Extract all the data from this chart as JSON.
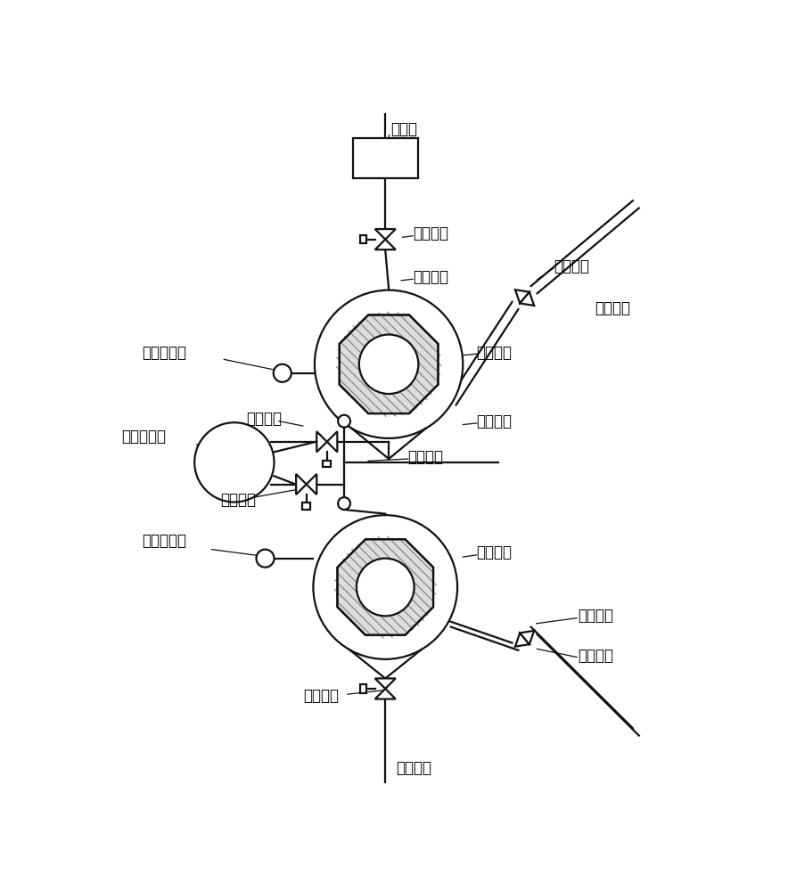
{
  "bg_color": "#ffffff",
  "line_color": "#111111",
  "labels": {
    "gas_meter": "气量计",
    "valve1": "第一阀门",
    "valve2": "第二阀门",
    "valve3": "第三阀门",
    "valve4": "第四阀门",
    "valve5": "第五阀门",
    "valve6": "第六阀门",
    "pipe1": "第一管线",
    "pipe2": "第二管线",
    "pipe3": "第三管线",
    "pipe4": "第四管线",
    "pipe5": "第五管线",
    "pipe6": "第六管线",
    "container1": "第一容器",
    "container2": "第二容器",
    "pressure1": "第一压力表",
    "pressure2": "第二压力表",
    "sample_transfer": "样品转移器"
  },
  "lw": 1.6,
  "font_size": 12
}
